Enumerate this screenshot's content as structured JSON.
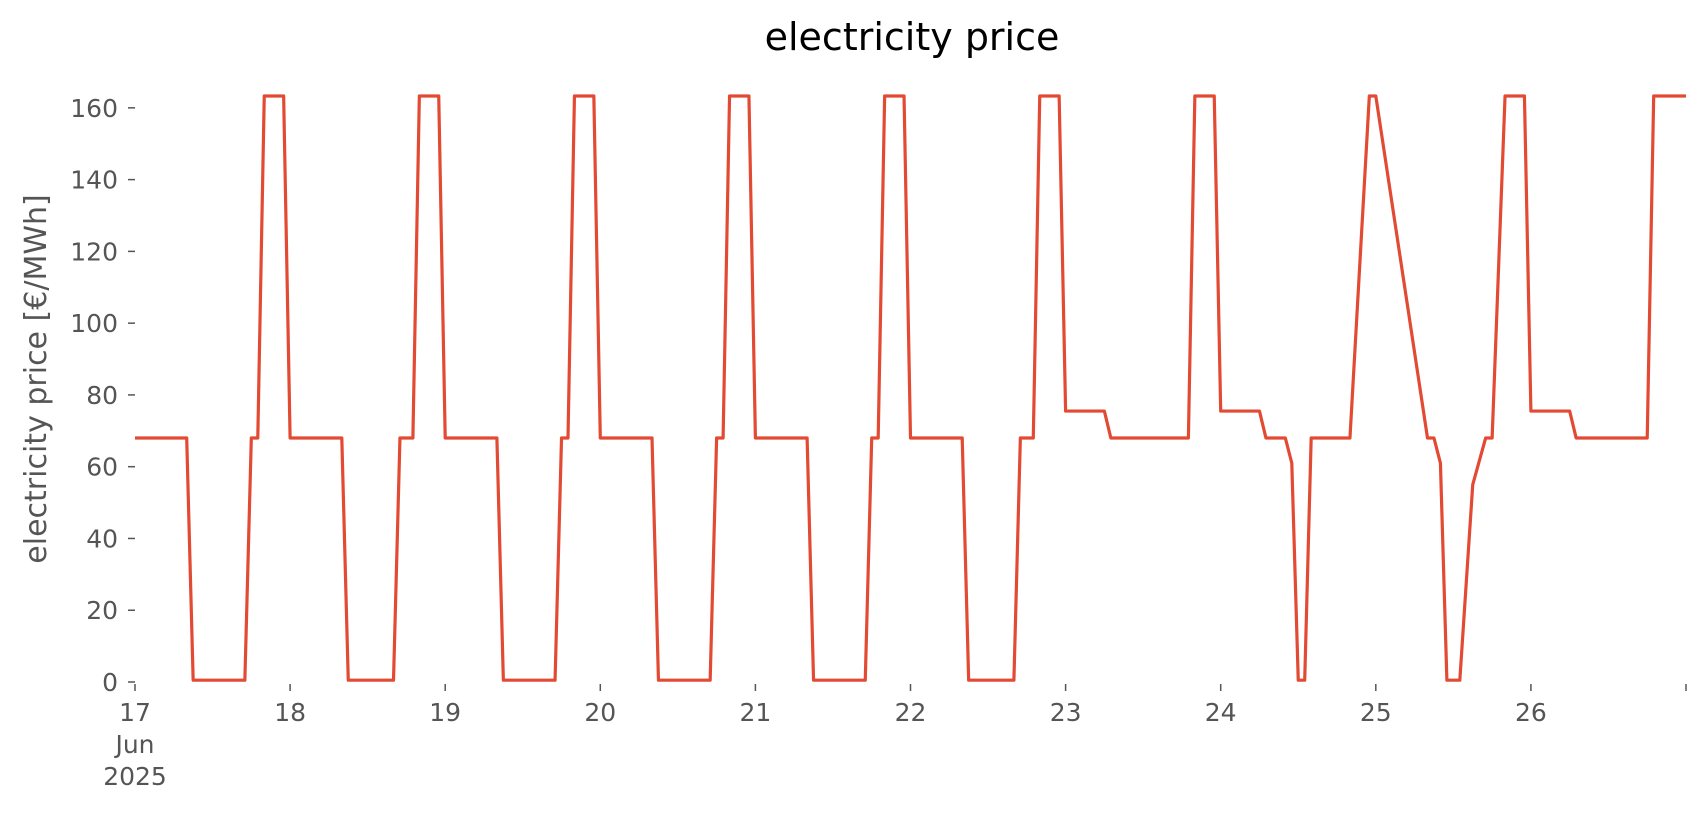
{
  "chart_data": {
    "type": "line",
    "title": "electricity price",
    "xlabel": "",
    "ylabel": "electricity price [€/MWh]",
    "ylim": [
      0,
      163.3
    ],
    "xlim": [
      "2025-06-17 00:00",
      "2025-06-27 00:00"
    ],
    "yticks": [
      0,
      20,
      40,
      60,
      80,
      100,
      120,
      140,
      160
    ],
    "xticks": [
      {
        "at": "2025-06-17",
        "lines": [
          "17",
          "Jun",
          "2025"
        ]
      },
      {
        "at": "2025-06-18",
        "lines": [
          "18"
        ]
      },
      {
        "at": "2025-06-19",
        "lines": [
          "19"
        ]
      },
      {
        "at": "2025-06-20",
        "lines": [
          "20"
        ]
      },
      {
        "at": "2025-06-21",
        "lines": [
          "21"
        ]
      },
      {
        "at": "2025-06-22",
        "lines": [
          "22"
        ]
      },
      {
        "at": "2025-06-23",
        "lines": [
          "23"
        ]
      },
      {
        "at": "2025-06-24",
        "lines": [
          "24"
        ]
      },
      {
        "at": "2025-06-25",
        "lines": [
          "25"
        ]
      },
      {
        "at": "2025-06-26",
        "lines": [
          "26"
        ]
      },
      {
        "at": "2025-06-27",
        "lines": [
          ""
        ]
      }
    ],
    "grid": false,
    "line_color": "#e24a33",
    "series": [
      {
        "x": [
          "2025-06-17 00:00",
          "2025-06-17 08:00",
          "2025-06-17 09:00",
          "2025-06-17 17:00",
          "2025-06-17 18:00",
          "2025-06-17 19:00",
          "2025-06-17 20:00",
          "2025-06-17 23:00",
          "2025-06-18 00:00",
          "2025-06-18 08:00",
          "2025-06-18 09:00",
          "2025-06-18 16:00",
          "2025-06-18 17:00",
          "2025-06-18 19:00",
          "2025-06-18 20:00",
          "2025-06-18 23:00",
          "2025-06-19 00:00",
          "2025-06-19 08:00",
          "2025-06-19 09:00",
          "2025-06-19 17:00",
          "2025-06-19 18:00",
          "2025-06-19 19:00",
          "2025-06-19 20:00",
          "2025-06-19 23:00",
          "2025-06-20 00:00",
          "2025-06-20 08:00",
          "2025-06-20 09:00",
          "2025-06-20 17:00",
          "2025-06-20 18:00",
          "2025-06-20 19:00",
          "2025-06-20 20:00",
          "2025-06-20 23:00",
          "2025-06-21 00:00",
          "2025-06-21 08:00",
          "2025-06-21 09:00",
          "2025-06-21 17:00",
          "2025-06-21 18:00",
          "2025-06-21 19:00",
          "2025-06-21 20:00",
          "2025-06-21 23:00",
          "2025-06-22 00:00",
          "2025-06-22 08:00",
          "2025-06-22 09:00",
          "2025-06-22 16:00",
          "2025-06-22 17:00",
          "2025-06-22 19:00",
          "2025-06-22 20:00",
          "2025-06-22 23:00",
          "2025-06-23 00:00",
          "2025-06-23 06:00",
          "2025-06-23 07:00",
          "2025-06-23 19:00",
          "2025-06-23 20:00",
          "2025-06-23 23:00",
          "2025-06-24 00:00",
          "2025-06-24 06:00",
          "2025-06-24 07:00",
          "2025-06-24 10:00",
          "2025-06-24 11:00",
          "2025-06-24 12:00",
          "2025-06-24 13:00",
          "2025-06-24 14:00",
          "2025-06-24 20:00",
          "2025-06-24 23:00",
          "2025-06-25 00:00",
          "2025-06-25 08:00",
          "2025-06-25 09:00",
          "2025-06-25 10:00",
          "2025-06-25 11:00",
          "2025-06-25 13:00",
          "2025-06-25 15:00",
          "2025-06-25 17:00",
          "2025-06-25 18:00",
          "2025-06-25 20:00",
          "2025-06-25 23:00",
          "2025-06-26 00:00",
          "2025-06-26 06:00",
          "2025-06-26 07:00",
          "2025-06-26 18:00",
          "2025-06-26 19:00",
          "2025-06-27 00:00"
        ],
        "y": [
          68,
          68,
          0.5,
          0.5,
          68,
          68,
          163.3,
          163.3,
          68,
          68,
          0.5,
          0.5,
          68,
          68,
          163.3,
          163.3,
          68,
          68,
          0.5,
          0.5,
          68,
          68,
          163.3,
          163.3,
          68,
          68,
          0.5,
          0.5,
          68,
          68,
          163.3,
          163.3,
          68,
          68,
          0.5,
          0.5,
          68,
          68,
          163.3,
          163.3,
          68,
          68,
          0.5,
          0.5,
          68,
          68,
          163.3,
          163.3,
          75.5,
          75.5,
          68,
          68,
          163.3,
          163.3,
          75.5,
          75.5,
          68,
          68,
          61,
          0.5,
          0.5,
          68,
          68,
          163.3,
          163.3,
          68,
          68,
          61,
          0.5,
          0.5,
          55,
          68,
          68,
          163.3,
          163.3,
          75.5,
          75.5,
          68,
          68,
          163.3,
          163.3
        ]
      }
    ]
  }
}
